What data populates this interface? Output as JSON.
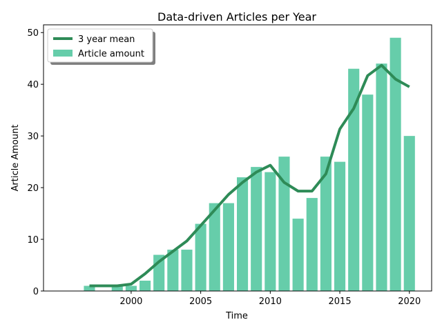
{
  "chart_data": {
    "type": "bar",
    "title": "Data-driven Articles per Year",
    "xlabel": "Time",
    "ylabel": "Article Amount",
    "x": [
      1997,
      1998,
      1999,
      2000,
      2001,
      2002,
      2003,
      2004,
      2005,
      2006,
      2007,
      2008,
      2009,
      2010,
      2011,
      2012,
      2013,
      2014,
      2015,
      2016,
      2017,
      2018,
      2019,
      2020
    ],
    "xlim": [
      1993.7,
      2021.6
    ],
    "ylim": [
      0,
      51.5
    ],
    "xticks": [
      2000,
      2005,
      2010,
      2015,
      2020
    ],
    "yticks": [
      0,
      10,
      20,
      30,
      40,
      50
    ],
    "grid": false,
    "legend_position": "top-left",
    "series": [
      {
        "name": "3 year mean",
        "type": "line",
        "color": "#2e8b57",
        "values": [
          1,
          1,
          1,
          1.33,
          3.33,
          5.67,
          7.67,
          9.67,
          12.67,
          15.67,
          18.67,
          21,
          23,
          24.33,
          21,
          19.33,
          19.33,
          22.67,
          31.33,
          35.33,
          41.67,
          43.67,
          41,
          39.5
        ]
      },
      {
        "name": "Article amount",
        "type": "bar",
        "color": "#66cdaa",
        "values": [
          1,
          0,
          1,
          1,
          2,
          7,
          8,
          8,
          13,
          17,
          17,
          22,
          24,
          23,
          26,
          14,
          18,
          26,
          25,
          43,
          38,
          44,
          49,
          30
        ]
      }
    ]
  }
}
